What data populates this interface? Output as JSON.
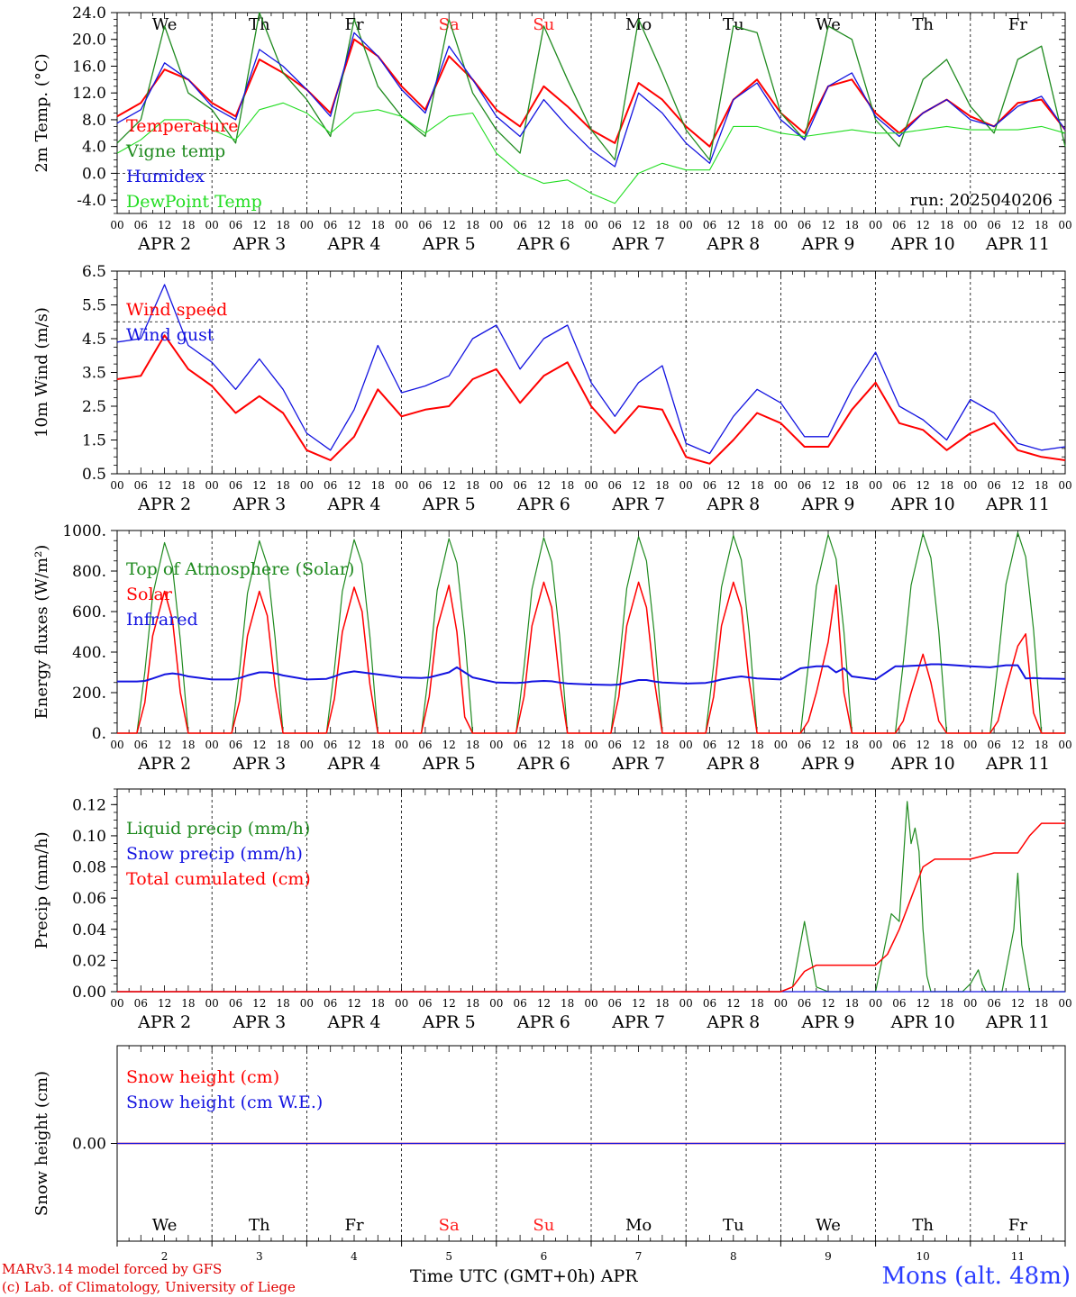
{
  "footer": {
    "model": "MARv3.14 model forced by GFS",
    "credit": "(c) Lab. of Climatology, University of Liege",
    "station": "Mons (alt. 48m)",
    "x_axis_title": "Time UTC (GMT+0h) APR"
  },
  "time_axis": {
    "days": [
      "APR 2",
      "APR 3",
      "APR 4",
      "APR 5",
      "APR 6",
      "APR 7",
      "APR 8",
      "APR 9",
      "APR 10",
      "APR 11"
    ],
    "hour_ticks": [
      "00",
      "06",
      "12",
      "18"
    ],
    "day_numbers": [
      "2",
      "3",
      "4",
      "5",
      "6",
      "7",
      "8",
      "9",
      "10",
      "11"
    ],
    "weekdays": [
      "We",
      "Th",
      "Fr",
      "Sa",
      "Su",
      "Mo",
      "Tu",
      "We",
      "Th",
      "Fr"
    ],
    "weekend_color": "#ff2020"
  },
  "colors": {
    "red": "#ff0000",
    "dark_green": "#1f8a1f",
    "blue": "#1414e0",
    "light_green": "#22dd22"
  },
  "chart_data": [
    {
      "type": "line",
      "ylabel": "2m Temp. (°C)",
      "ylim": [
        -6,
        24
      ],
      "yticks": [
        "24.0",
        "20.0",
        "16.0",
        "12.0",
        "8.0",
        "4.0",
        "0.0",
        "-4.0"
      ],
      "ytick_values": [
        24,
        20,
        16,
        12,
        8,
        4,
        0,
        -4
      ],
      "dashed_lines": [
        0
      ],
      "annotation": "run: 2025040206",
      "x_hours": [
        0,
        6,
        12,
        18,
        24,
        30,
        36,
        42,
        48,
        54,
        60,
        66,
        72,
        78,
        84,
        90,
        96,
        102,
        108,
        114,
        120,
        126,
        132,
        138,
        144,
        150,
        156,
        162,
        168,
        174,
        180,
        186,
        192,
        198,
        204,
        210,
        216,
        222,
        228,
        234,
        240
      ],
      "series": [
        {
          "name": "Temperature",
          "color": "#ff0000",
          "width": 2,
          "values": [
            8.5,
            10.5,
            15.5,
            14,
            10.5,
            8.5,
            17,
            15,
            12.5,
            9,
            20,
            17.5,
            13,
            9.5,
            17.5,
            14,
            9.5,
            7,
            13,
            10,
            6.5,
            4.5,
            13.5,
            11,
            7,
            4,
            11,
            14,
            9,
            6,
            13,
            14,
            9,
            6,
            9,
            11,
            8.5,
            7,
            10.5,
            11,
            6.5
          ]
        },
        {
          "name": "Vigne temp",
          "color": "#1f8a1f",
          "width": 1.3,
          "values": [
            4.5,
            8,
            22,
            12,
            9.5,
            4.5,
            24,
            15,
            11,
            5.5,
            23,
            13,
            8.5,
            5.5,
            23,
            12,
            6.5,
            3,
            22,
            14,
            6.5,
            2,
            23,
            15,
            6.5,
            2,
            22,
            21,
            9,
            5,
            22,
            20,
            8,
            4,
            14,
            17,
            10,
            6,
            17,
            19,
            4
          ]
        },
        {
          "name": "Humidex",
          "color": "#1414e0",
          "width": 1.3,
          "values": [
            7.5,
            9.5,
            16.5,
            14,
            10,
            8,
            18.5,
            16,
            12.5,
            8.5,
            21,
            17.5,
            12.5,
            9,
            19,
            14,
            8.5,
            5.5,
            11,
            7,
            3.5,
            1,
            12,
            9,
            4.5,
            1.5,
            11,
            13.5,
            8,
            5,
            13,
            15,
            8.5,
            5.5,
            9,
            11,
            8,
            7,
            10,
            11.5,
            6.5
          ]
        },
        {
          "name": "DewPoint Temp",
          "color": "#22dd22",
          "width": 1.1,
          "values": [
            3,
            5,
            8,
            8,
            6.5,
            5,
            9.5,
            10.5,
            9,
            6,
            9,
            9.5,
            8.5,
            6,
            8.5,
            9,
            3,
            0,
            -1.5,
            -1,
            -3,
            -4.5,
            0,
            1.5,
            0.5,
            0.5,
            7,
            7,
            6,
            5.5,
            6,
            6.5,
            6,
            6,
            6.5,
            7,
            6.5,
            6.5,
            6.5,
            7,
            6
          ]
        }
      ]
    },
    {
      "type": "line",
      "ylabel": "10m Wind (m/s)",
      "ylim": [
        0.5,
        6.5
      ],
      "yticks": [
        "6.5",
        "5.5",
        "4.5",
        "3.5",
        "2.5",
        "1.5",
        "0.5"
      ],
      "ytick_values": [
        6.5,
        5.5,
        4.5,
        3.5,
        2.5,
        1.5,
        0.5
      ],
      "dashed_lines": [
        5
      ],
      "x_hours": [
        0,
        6,
        12,
        18,
        24,
        30,
        36,
        42,
        48,
        54,
        60,
        66,
        72,
        78,
        84,
        90,
        96,
        102,
        108,
        114,
        120,
        126,
        132,
        138,
        144,
        150,
        156,
        162,
        168,
        174,
        180,
        186,
        192,
        198,
        204,
        210,
        216,
        222,
        228,
        234,
        240
      ],
      "series": [
        {
          "name": "Wind speed",
          "color": "#ff0000",
          "width": 2,
          "values": [
            3.3,
            3.4,
            4.6,
            3.6,
            3.1,
            2.3,
            2.8,
            2.3,
            1.2,
            0.9,
            1.6,
            3.0,
            2.2,
            2.4,
            2.5,
            3.3,
            3.6,
            2.6,
            3.4,
            3.8,
            2.5,
            1.7,
            2.5,
            2.4,
            1.0,
            0.8,
            1.5,
            2.3,
            2.0,
            1.3,
            1.3,
            2.4,
            3.2,
            2.0,
            1.8,
            1.2,
            1.7,
            2.0,
            1.2,
            1.0,
            0.9
          ]
        },
        {
          "name": "Wind gust",
          "color": "#1414e0",
          "width": 1.3,
          "values": [
            4.4,
            4.5,
            6.1,
            4.3,
            3.8,
            3.0,
            3.9,
            3.0,
            1.7,
            1.2,
            2.4,
            4.3,
            2.9,
            3.1,
            3.4,
            4.5,
            4.9,
            3.6,
            4.5,
            4.9,
            3.2,
            2.2,
            3.2,
            3.7,
            1.4,
            1.1,
            2.2,
            3.0,
            2.6,
            1.6,
            1.6,
            3.0,
            4.1,
            2.5,
            2.1,
            1.5,
            2.7,
            2.3,
            1.4,
            1.2,
            1.3
          ]
        }
      ]
    },
    {
      "type": "line",
      "ylabel": "Energy fluxes (W/m²)",
      "ylim": [
        0,
        1000
      ],
      "yticks": [
        "1000.",
        "800.",
        "600.",
        "400.",
        "200.",
        "0."
      ],
      "ytick_values": [
        1000,
        800,
        600,
        400,
        200,
        0
      ],
      "dashed_lines": [],
      "x_hours": [
        0,
        5,
        7,
        9,
        12,
        14,
        16,
        18,
        24,
        29,
        31,
        33,
        36,
        38,
        40,
        42,
        48,
        53,
        55,
        57,
        60,
        62,
        64,
        66,
        72,
        77,
        79,
        81,
        84,
        86,
        88,
        90,
        96,
        101,
        103,
        105,
        108,
        110,
        112,
        114,
        120,
        125,
        127,
        129,
        132,
        134,
        136,
        138,
        144,
        149,
        151,
        153,
        156,
        158,
        160,
        162,
        168,
        173,
        175,
        177,
        180,
        182,
        184,
        186,
        192,
        197,
        199,
        201,
        204,
        206,
        208,
        210,
        216,
        221,
        223,
        225,
        228,
        230,
        232,
        234,
        240
      ],
      "series": [
        {
          "name": "Top of Atmosphere (Solar)",
          "color": "#1f8a1f",
          "width": 1.2,
          "values": [
            0,
            0,
            300,
            680,
            940,
            820,
            460,
            0,
            0,
            0,
            310,
            690,
            950,
            830,
            470,
            0,
            0,
            0,
            315,
            700,
            955,
            835,
            475,
            0,
            0,
            0,
            320,
            705,
            960,
            840,
            480,
            0,
            0,
            0,
            325,
            710,
            965,
            845,
            485,
            0,
            0,
            0,
            330,
            715,
            970,
            850,
            490,
            0,
            0,
            0,
            335,
            720,
            975,
            855,
            495,
            0,
            0,
            0,
            340,
            725,
            980,
            860,
            500,
            0,
            0,
            0,
            345,
            730,
            985,
            865,
            505,
            0,
            0,
            0,
            350,
            735,
            990,
            870,
            510,
            0,
            0
          ]
        },
        {
          "name": "Solar",
          "color": "#ff0000",
          "width": 1.5,
          "values": [
            0,
            0,
            150,
            480,
            700,
            560,
            200,
            0,
            0,
            0,
            160,
            480,
            700,
            580,
            230,
            0,
            0,
            0,
            170,
            500,
            720,
            600,
            240,
            0,
            0,
            0,
            180,
            520,
            730,
            500,
            80,
            0,
            0,
            0,
            180,
            530,
            745,
            620,
            260,
            0,
            0,
            0,
            180,
            530,
            745,
            620,
            260,
            0,
            0,
            0,
            180,
            530,
            745,
            620,
            260,
            0,
            0,
            0,
            60,
            200,
            450,
            730,
            200,
            0,
            0,
            0,
            60,
            200,
            390,
            250,
            60,
            0,
            0,
            0,
            60,
            220,
            430,
            490,
            100,
            0,
            0
          ]
        },
        {
          "name": "Infrared",
          "color": "#1414e0",
          "width": 2,
          "values": [
            255,
            255,
            258,
            270,
            290,
            295,
            290,
            280,
            265,
            265,
            272,
            285,
            300,
            300,
            295,
            285,
            265,
            268,
            280,
            295,
            305,
            300,
            295,
            290,
            275,
            272,
            275,
            285,
            300,
            325,
            300,
            275,
            250,
            248,
            250,
            255,
            258,
            256,
            250,
            245,
            240,
            238,
            240,
            250,
            262,
            262,
            255,
            250,
            245,
            248,
            255,
            265,
            275,
            280,
            275,
            270,
            265,
            320,
            325,
            330,
            330,
            300,
            320,
            280,
            265,
            330,
            330,
            332,
            335,
            340,
            340,
            338,
            330,
            325,
            330,
            335,
            335,
            270,
            272,
            270,
            268
          ]
        }
      ]
    },
    {
      "type": "line",
      "ylabel": "Precip (mm/h)",
      "ylim": [
        0,
        0.13
      ],
      "yticks": [
        "0.12",
        "0.10",
        "0.08",
        "0.06",
        "0.04",
        "0.02",
        "0.00"
      ],
      "ytick_values": [
        0.12,
        0.1,
        0.08,
        0.06,
        0.04,
        0.02,
        0
      ],
      "dashed_lines": [],
      "series": [
        {
          "name": "Liquid precip (mm/h)",
          "color": "#1f8a1f",
          "width": 1.2,
          "x": [
            0,
            168,
            171,
            174,
            177,
            180,
            192,
            194,
            196,
            198,
            200,
            201,
            202,
            203,
            204,
            205,
            206,
            208,
            210,
            214,
            216,
            218,
            219,
            220,
            221,
            222,
            224,
            227,
            228,
            229,
            231,
            233,
            234,
            240
          ],
          "values": [
            0,
            0,
            0.003,
            0.045,
            0.003,
            0,
            0,
            0.025,
            0.05,
            0.045,
            0.122,
            0.095,
            0.105,
            0.09,
            0.04,
            0.01,
            0,
            0,
            0,
            0,
            0.005,
            0.014,
            0.005,
            0,
            0,
            0,
            0,
            0.04,
            0.076,
            0.03,
            0,
            0,
            0,
            0
          ]
        },
        {
          "name": "Snow precip (mm/h)",
          "color": "#1414e0",
          "width": 1.2,
          "x": [
            0,
            240
          ],
          "values": [
            0,
            0
          ]
        },
        {
          "name": "Total cumulated (cm)",
          "color": "#ff0000",
          "width": 1.5,
          "x": [
            0,
            168,
            171,
            174,
            177,
            180,
            192,
            195,
            198,
            201,
            204,
            207,
            216,
            222,
            228,
            231,
            234,
            240
          ],
          "values": [
            0,
            0,
            0.003,
            0.013,
            0.017,
            0.017,
            0.017,
            0.024,
            0.04,
            0.06,
            0.08,
            0.085,
            0.085,
            0.089,
            0.089,
            0.1,
            0.108,
            0.108
          ]
        }
      ]
    },
    {
      "type": "line",
      "ylabel": "Snow height (cm)",
      "ylim": [
        -1,
        1
      ],
      "yticks": [
        "0.00"
      ],
      "ytick_values": [
        0
      ],
      "dashed_lines": [],
      "series": [
        {
          "name": "Snow height (cm)",
          "color": "#ff0000",
          "width": 1.5,
          "x": [
            0,
            240
          ],
          "values": [
            0,
            0
          ]
        },
        {
          "name": "Snow height (cm W.E.)",
          "color": "#1414e0",
          "width": 1.2,
          "x": [
            0,
            240
          ],
          "values": [
            0,
            0
          ]
        }
      ]
    }
  ]
}
